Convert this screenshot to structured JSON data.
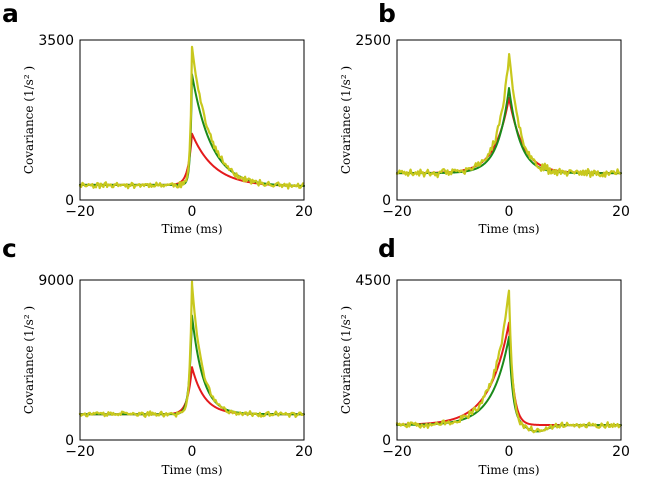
{
  "figure": {
    "colors": {
      "red": "#e41a1c",
      "green": "#1a8a1a",
      "olive": "#c8c81e"
    }
  },
  "chart_data": [
    {
      "type": "line",
      "panel": "a",
      "xlabel": "Time (ms)",
      "ylabel": "Covariance (1/s² )",
      "xlim": [
        -20,
        20
      ],
      "ylim": [
        0,
        3500
      ],
      "x_ticks": [
        "−20",
        "0",
        "20"
      ],
      "y_ticks": [
        "0",
        "3500"
      ],
      "baseline": 330,
      "right_base": 300,
      "noise": 55,
      "series": [
        {
          "name": "red",
          "color": "#e41a1c",
          "curve": "exp",
          "peak": 1450,
          "tau_left": 0.7,
          "tau_right": 4.0,
          "noisy": false
        },
        {
          "name": "green",
          "color": "#1a8a1a",
          "curve": "exp",
          "peak": 2750,
          "tau_left": 0.3,
          "tau_right": 3.5,
          "noisy": false
        },
        {
          "name": "olive",
          "color": "#c8c81e",
          "curve": "exp",
          "peak": 3350,
          "tau_left": 0.3,
          "tau_right": 3.2,
          "noisy": true,
          "seed": 11
        }
      ]
    },
    {
      "type": "line",
      "panel": "b",
      "xlabel": "Time (ms)",
      "ylabel": "Covariance (1/s² )",
      "xlim": [
        -20,
        20
      ],
      "ylim": [
        0,
        2500
      ],
      "x_ticks": [
        "−20",
        "0",
        "20"
      ],
      "y_ticks": [
        "0",
        "2500"
      ],
      "baseline": 420,
      "right_base": 420,
      "noise": 55,
      "series": [
        {
          "name": "red",
          "color": "#e41a1c",
          "curve": "exp",
          "peak": 1600,
          "tau_left": 2.5,
          "tau_right": 2.5,
          "noisy": false
        },
        {
          "name": "green",
          "color": "#1a8a1a",
          "curve": "exp",
          "peak": 1750,
          "tau_left": 2.0,
          "tau_right": 2.0,
          "noisy": false
        },
        {
          "name": "olive",
          "color": "#c8c81e",
          "curve": "exp",
          "peak": 2250,
          "tau_left": 2.0,
          "tau_right": 2.0,
          "noisy": true,
          "seed": 23
        }
      ]
    },
    {
      "type": "line",
      "panel": "c",
      "xlabel": "Time (ms)",
      "ylabel": "Covariance (1/s² )",
      "xlim": [
        -20,
        20
      ],
      "ylim": [
        0,
        9000
      ],
      "x_ticks": [
        "−20",
        "0",
        "20"
      ],
      "y_ticks": [
        "0",
        "9000"
      ],
      "baseline": 1450,
      "right_base": 1450,
      "noise": 120,
      "series": [
        {
          "name": "red",
          "color": "#e41a1c",
          "curve": "exp",
          "peak": 4100,
          "tau_left": 0.8,
          "tau_right": 2.2,
          "noisy": false
        },
        {
          "name": "green",
          "color": "#1a8a1a",
          "curve": "exp",
          "peak": 7000,
          "tau_left": 0.5,
          "tau_right": 2.0,
          "noisy": false
        },
        {
          "name": "olive",
          "color": "#c8c81e",
          "curve": "exp",
          "peak": 8900,
          "tau_left": 0.4,
          "tau_right": 1.8,
          "noisy": true,
          "seed": 37
        }
      ]
    },
    {
      "type": "line",
      "panel": "d",
      "xlabel": "Time (ms)",
      "ylabel": "Covariance (1/s² )",
      "xlim": [
        -20,
        20
      ],
      "ylim": [
        0,
        4500
      ],
      "x_ticks": [
        "−20",
        "0",
        "20"
      ],
      "y_ticks": [
        "0",
        "4500"
      ],
      "baseline": 420,
      "right_base": 420,
      "noise": 75,
      "series": [
        {
          "name": "red",
          "color": "#e41a1c",
          "curve": "exp",
          "peak": 3300,
          "tau_left": 3.5,
          "tau_right": 0.8,
          "noisy": false
        },
        {
          "name": "green",
          "color": "#1a8a1a",
          "curve": "dip",
          "peak": 2900,
          "tau_left": 3.0,
          "tau_right": 0.7,
          "dip_depth": 180,
          "dip_center": 5,
          "dip_width": 2.5,
          "noisy": false
        },
        {
          "name": "olive",
          "color": "#c8c81e",
          "curve": "dip",
          "peak": 4200,
          "tau_left": 2.8,
          "tau_right": 0.6,
          "dip_depth": 150,
          "dip_center": 5,
          "dip_width": 2.5,
          "noisy": true,
          "seed": 51
        }
      ]
    }
  ]
}
